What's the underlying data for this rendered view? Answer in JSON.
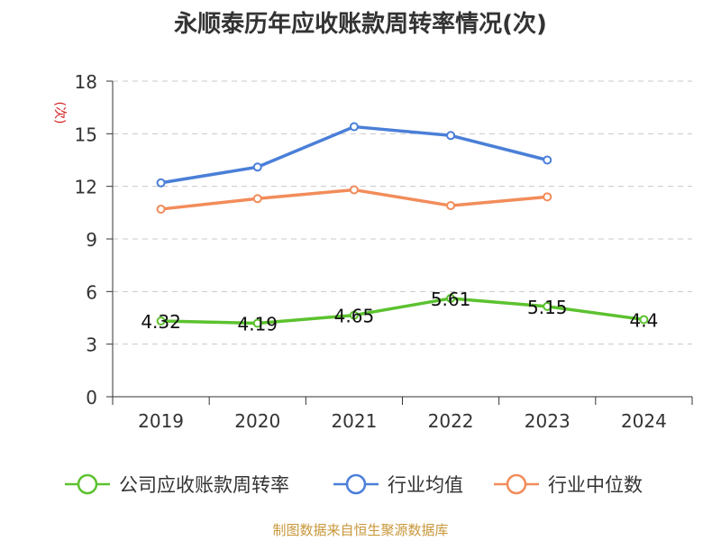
{
  "title": "永顺泰历年应收账款周转率情况(次)",
  "source": "制图数据来自恒生聚源数据库",
  "chart_data": {
    "type": "line",
    "title": "永顺泰历年应收账款周转率情况(次)",
    "ylabel": "(次)",
    "categories": [
      "2019",
      "2020",
      "2021",
      "2022",
      "2023",
      "2024"
    ],
    "ylim": [
      0,
      18
    ],
    "yticks": [
      0,
      3,
      6,
      9,
      12,
      15,
      18
    ],
    "grid": true,
    "legend_position": "bottom",
    "series": [
      {
        "name": "公司应收账款周转率",
        "color": "#5cc22f",
        "values": [
          4.32,
          4.19,
          4.65,
          5.61,
          5.15,
          4.4
        ],
        "labels": [
          "4.32",
          "4.19",
          "4.65",
          "5.61",
          "5.15",
          "4.4"
        ],
        "show_labels": true
      },
      {
        "name": "行业均值",
        "color": "#4a7fd8",
        "values": [
          12.2,
          13.1,
          15.4,
          14.9,
          13.5,
          null
        ],
        "show_labels": false
      },
      {
        "name": "行业中位数",
        "color": "#f28c5a",
        "values": [
          10.7,
          11.3,
          11.8,
          10.9,
          11.4,
          null
        ],
        "show_labels": false
      }
    ]
  }
}
